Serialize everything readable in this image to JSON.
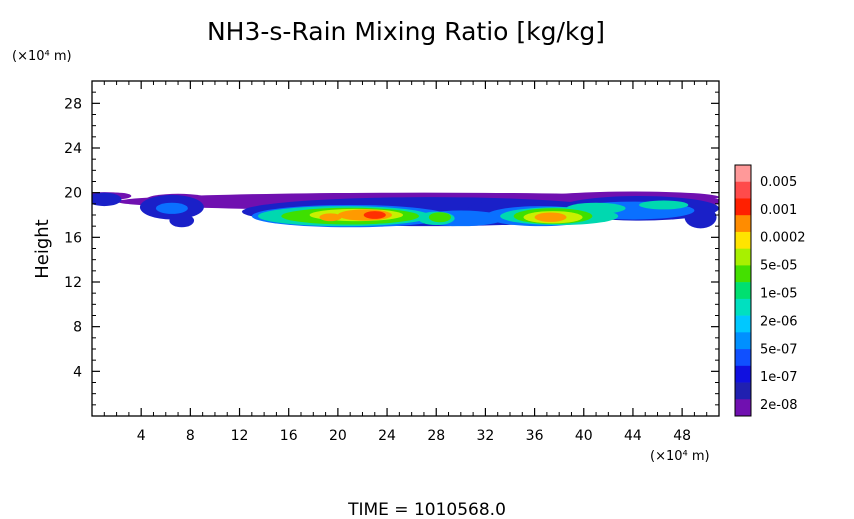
{
  "chart_data": {
    "type": "heatmap",
    "title": "NH3-s-Rain Mixing Ratio [kg/kg]",
    "ylabel": "Height",
    "xlabel": "",
    "x_unit": "(×10⁴ m)",
    "y_unit": "(×10⁴ m)",
    "xlim": [
      0,
      51
    ],
    "ylim": [
      0,
      30
    ],
    "x_ticks": [
      "4",
      "8",
      "12",
      "16",
      "20",
      "24",
      "28",
      "32",
      "36",
      "40",
      "44",
      "48"
    ],
    "x_tick_values": [
      4,
      8,
      12,
      16,
      20,
      24,
      28,
      32,
      36,
      40,
      44,
      48
    ],
    "y_ticks": [
      "4",
      "8",
      "12",
      "16",
      "20",
      "24",
      "28"
    ],
    "y_tick_values": [
      4,
      8,
      12,
      16,
      20,
      24,
      28
    ],
    "footer": "TIME  =  1010568.0",
    "colorbar": {
      "labels": [
        "0.005",
        "0.001",
        "0.0002",
        "5e-05",
        "1e-05",
        "2e-06",
        "5e-07",
        "1e-07",
        "2e-08"
      ],
      "colors": [
        "#ff9999",
        "#ff4b4b",
        "#ff2000",
        "#ff8c00",
        "#ffe400",
        "#a8f000",
        "#44e000",
        "#00e070",
        "#00e0c0",
        "#00c8ff",
        "#0090ff",
        "#1050ff",
        "#1010e0",
        "#2020b0",
        "#7010b0"
      ]
    },
    "layers": [
      {
        "level": 0,
        "color": "#7010b0",
        "blobs": [
          [
            1,
            19.7,
            2,
            0.35
          ],
          [
            7,
            19.4,
            2.6,
            0.5
          ],
          [
            27,
            19.2,
            25,
            0.8
          ],
          [
            44,
            19.6,
            7,
            0.5
          ],
          [
            2,
            19.7,
            1.2,
            0.3
          ]
        ]
      },
      {
        "level": 1,
        "color": "#1a20c8",
        "blobs": [
          [
            1,
            19.4,
            1.4,
            0.6
          ],
          [
            6.5,
            18.7,
            2.6,
            1.1
          ],
          [
            7.3,
            17.5,
            1.0,
            0.6
          ],
          [
            27.5,
            18.3,
            15.3,
            1.3
          ],
          [
            44.5,
            18.6,
            6.5,
            1.1
          ],
          [
            49.5,
            17.8,
            1.3,
            1.0
          ],
          [
            33.5,
            18.4,
            3,
            0.9
          ]
        ]
      },
      {
        "level": 2,
        "color": "#0a70ff",
        "blobs": [
          [
            21,
            17.9,
            8,
            1.0
          ],
          [
            36.5,
            17.9,
            4.5,
            0.9
          ],
          [
            44,
            18.4,
            5,
            0.8
          ],
          [
            30,
            17.7,
            3.5,
            0.7
          ],
          [
            6.5,
            18.6,
            1.3,
            0.5
          ]
        ]
      },
      {
        "level": 3,
        "color": "#00d8b0",
        "blobs": [
          [
            20.5,
            17.9,
            7,
            0.9
          ],
          [
            38,
            17.9,
            4.8,
            0.8
          ],
          [
            28,
            17.7,
            1.5,
            0.6
          ],
          [
            41,
            18.6,
            2.4,
            0.5
          ],
          [
            46.5,
            18.9,
            2,
            0.4
          ]
        ]
      },
      {
        "level": 4,
        "color": "#3ee000",
        "blobs": [
          [
            21,
            17.9,
            5.6,
            0.75
          ],
          [
            37.5,
            17.9,
            3.2,
            0.7
          ],
          [
            28.3,
            17.8,
            0.9,
            0.45
          ]
        ]
      },
      {
        "level": 5,
        "color": "#c8f000",
        "blobs": [
          [
            21.5,
            18.0,
            3.8,
            0.55
          ],
          [
            37.5,
            17.8,
            2.4,
            0.55
          ]
        ]
      },
      {
        "level": 6,
        "color": "#ff9a00",
        "blobs": [
          [
            22.2,
            18.0,
            2.2,
            0.5
          ],
          [
            37.3,
            17.8,
            1.3,
            0.42
          ],
          [
            19.4,
            17.8,
            0.9,
            0.35
          ]
        ]
      },
      {
        "level": 7,
        "color": "#ff3000",
        "blobs": [
          [
            23,
            18.0,
            0.9,
            0.35
          ]
        ]
      }
    ]
  }
}
